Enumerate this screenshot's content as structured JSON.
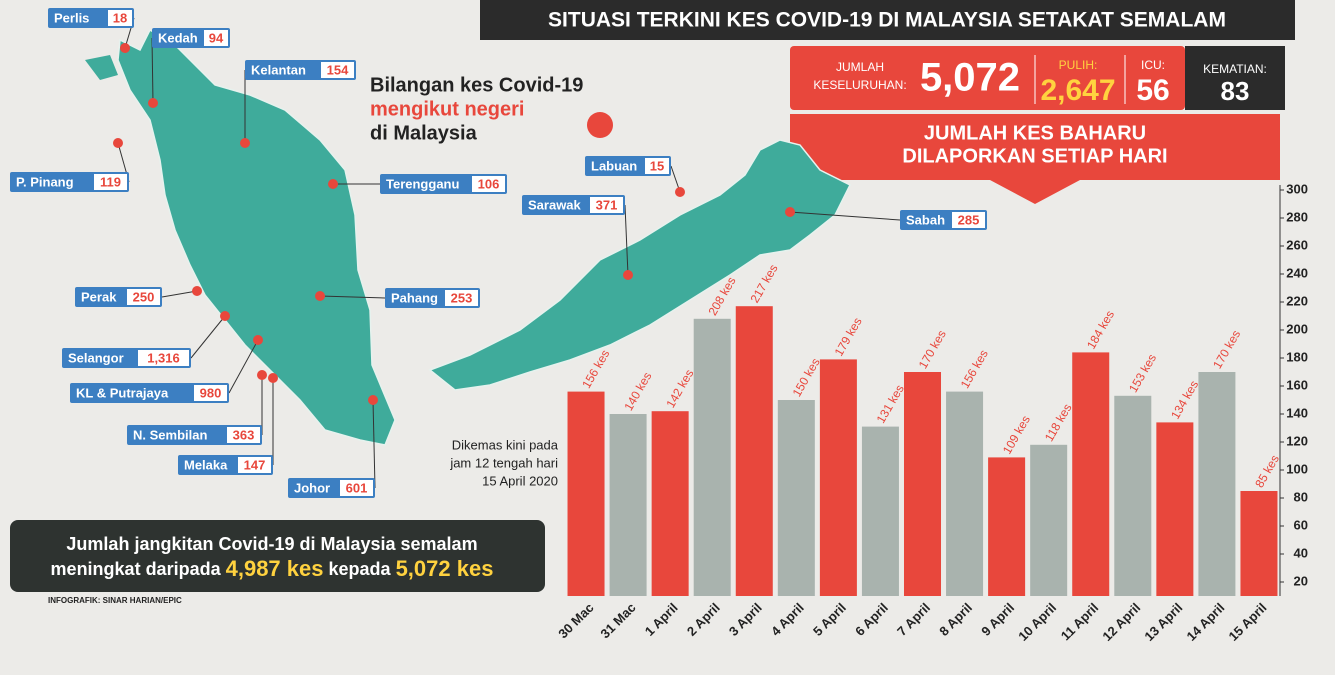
{
  "header": {
    "title": "SITUASI TERKINI KES COVID-19 DI MALAYSIA SETAKAT SEMALAM"
  },
  "stats": {
    "total_label": [
      "JUMLAH",
      "KESELURUHAN:"
    ],
    "total": "5,072",
    "recovered_label": "PULIH:",
    "recovered": "2,647",
    "icu_label": "ICU:",
    "icu": "56",
    "deaths_label": "KEMATIAN:",
    "deaths": "83"
  },
  "map": {
    "title": [
      "Bilangan kes Covid-19",
      "mengikut negeri",
      "di Malaysia"
    ],
    "states": [
      {
        "name": "Perlis",
        "value": "18"
      },
      {
        "name": "Kedah",
        "value": "94"
      },
      {
        "name": "Kelantan",
        "value": "154"
      },
      {
        "name": "P. Pinang",
        "value": "119"
      },
      {
        "name": "Terengganu",
        "value": "106"
      },
      {
        "name": "Perak",
        "value": "250"
      },
      {
        "name": "Pahang",
        "value": "253"
      },
      {
        "name": "Selangor",
        "value": "1,316"
      },
      {
        "name": "KL & Putrajaya",
        "value": "980"
      },
      {
        "name": "N. Sembilan",
        "value": "363"
      },
      {
        "name": "Melaka",
        "value": "147"
      },
      {
        "name": "Johor",
        "value": "601"
      },
      {
        "name": "Labuan",
        "value": "15"
      },
      {
        "name": "Sarawak",
        "value": "371"
      },
      {
        "name": "Sabah",
        "value": "285"
      }
    ]
  },
  "update_note": [
    "Dikemas kini pada",
    "jam 12 tengah hari",
    "15 April 2020"
  ],
  "summary": {
    "line1": "Jumlah jangkitan Covid-19 di Malaysia semalam",
    "from_text": "meningkat daripada",
    "from": "4,987 kes",
    "to_text": "kepada",
    "to": "5,072 kes"
  },
  "credit": "INFOGRAFIK: SINAR HARIAN/EPIC",
  "chart_data": {
    "type": "bar",
    "title": [
      "JUMLAH KES BAHARU",
      "DILAPORKAN SETIAP HARI"
    ],
    "categories": [
      "30 Mac",
      "31 Mac",
      "1 April",
      "2 April",
      "3 April",
      "4 April",
      "5 April",
      "6 April",
      "7 April",
      "8 April",
      "9 April",
      "10 April",
      "11 April",
      "12 April",
      "13 April",
      "14 April",
      "15 April"
    ],
    "values": [
      156,
      140,
      142,
      208,
      217,
      150,
      179,
      131,
      170,
      156,
      109,
      118,
      184,
      153,
      134,
      170,
      85
    ],
    "value_labels": [
      "156 kes",
      "140 kes",
      "142 kes",
      "208 kes",
      "217 kes",
      "150 kes",
      "179 kes",
      "131 kes",
      "170 kes",
      "156 kes",
      "109 kes",
      "118 kes",
      "184 kes",
      "153 kes",
      "134 kes",
      "170 kes",
      "85 kes"
    ],
    "colors": [
      "#e8473c",
      "#a9b3ae",
      "#e8473c",
      "#a9b3ae",
      "#e8473c",
      "#a9b3ae",
      "#e8473c",
      "#a9b3ae",
      "#e8473c",
      "#a9b3ae",
      "#e8473c",
      "#a9b3ae",
      "#e8473c",
      "#a9b3ae",
      "#e8473c",
      "#a9b3ae",
      "#e8473c"
    ],
    "ylim": [
      10,
      300
    ],
    "yticks": [
      20,
      40,
      60,
      80,
      100,
      120,
      140,
      160,
      180,
      200,
      220,
      240,
      260,
      280,
      300
    ],
    "yaxis_side": "right"
  }
}
